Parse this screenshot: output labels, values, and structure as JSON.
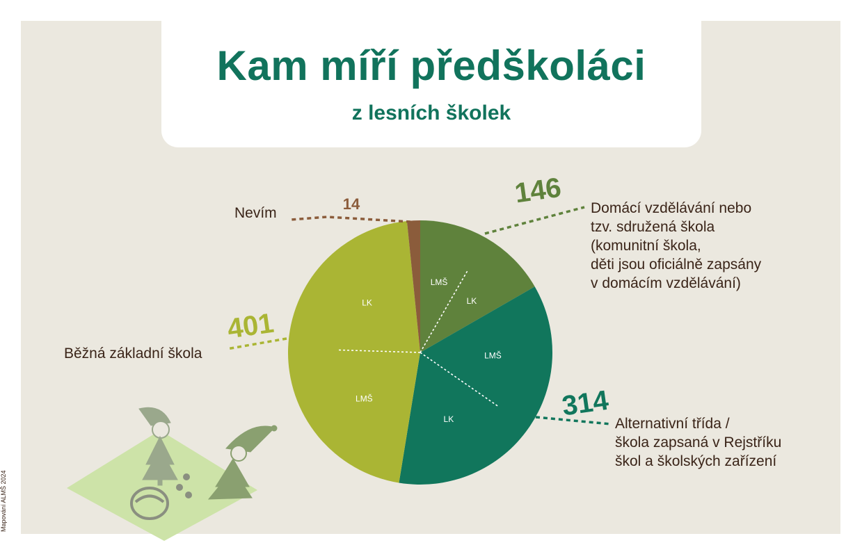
{
  "header": {
    "title": "Kam míří předškoláci",
    "subtitle": "z lesních školek"
  },
  "credit": "Mapování ALMŠ 2024",
  "colors": {
    "title": "#11735c",
    "background": "#ebe8df",
    "text": "#3a2418"
  },
  "chart_data": {
    "type": "pie",
    "title": "Kam míří předškoláci",
    "subtitle": "z lesních školek",
    "start": "12 o'clock, clockwise",
    "slices": [
      {
        "value": 146,
        "value_label": "146",
        "label": [
          "Domácí vzdělávání nebo",
          "tzv. sdružená škola",
          "(komunitní škola,",
          "děti jsou oficiálně zapsány",
          "v domácím vzdělávání)"
        ],
        "color": "#5f823c",
        "sub": [
          {
            "label": "LMŠ"
          },
          {
            "label": "LK"
          }
        ]
      },
      {
        "value": 314,
        "value_label": "314",
        "label": [
          "Alternativní třída /",
          "škola zapsaná v Rejstříku",
          "škol a školských zařízení"
        ],
        "color": "#11765c",
        "sub": [
          {
            "label": "LMŠ"
          },
          {
            "label": "LK"
          }
        ]
      },
      {
        "value": 401,
        "value_label": "401",
        "label": [
          "Běžná základní škola"
        ],
        "color": "#aab534",
        "sub": [
          {
            "label": "LMŠ"
          },
          {
            "label": "LK"
          }
        ]
      },
      {
        "value": 14,
        "value_label": "14",
        "label": [
          "Nevím"
        ],
        "color": "#8b5c3b",
        "sub": []
      }
    ]
  }
}
